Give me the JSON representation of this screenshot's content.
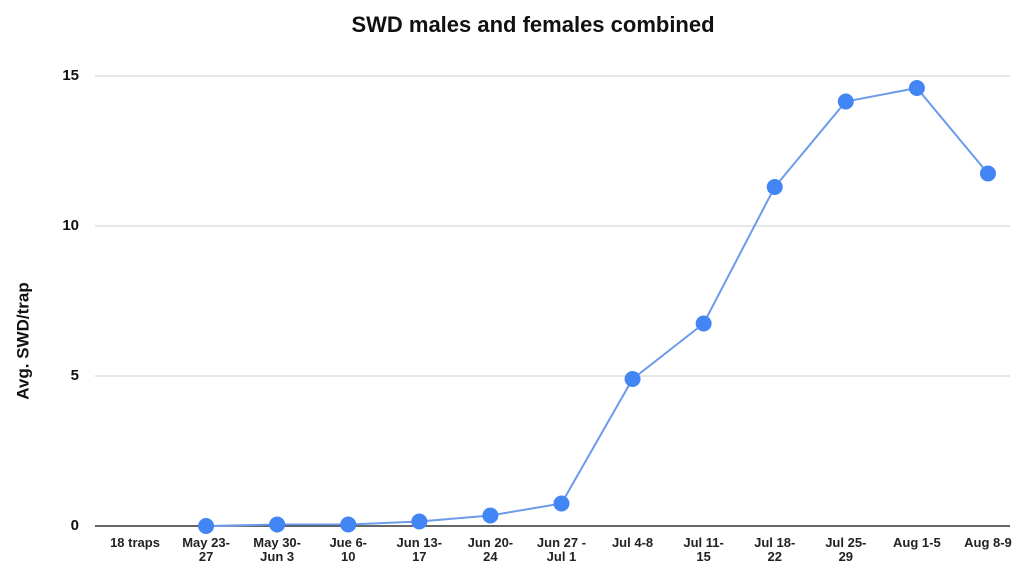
{
  "chart_data": {
    "type": "line",
    "title": "SWD males and females combined",
    "y_label": "Avg. SWD/trap",
    "categories": [
      "18 traps",
      "May 23-27",
      "May 30- Jun 3",
      "Jue 6-10",
      "Jun 13-17",
      "Jun 20-24",
      "Jun 27 - Jul 1",
      "Jul 4-8",
      "Jul 11-15",
      "Jul 18-22",
      "Jul 25-29",
      "Aug 1-5",
      "Aug 8-9"
    ],
    "series": [
      {
        "name": "SWD",
        "color": "#4285f4",
        "values": [
          null,
          0,
          0.05,
          0.05,
          0.15,
          0.35,
          0.75,
          4.9,
          6.75,
          11.3,
          14.15,
          14.6,
          11.75
        ]
      }
    ],
    "ylim": [
      0,
      15
    ],
    "yticks": [
      0,
      5,
      10,
      15
    ],
    "grid": true
  }
}
